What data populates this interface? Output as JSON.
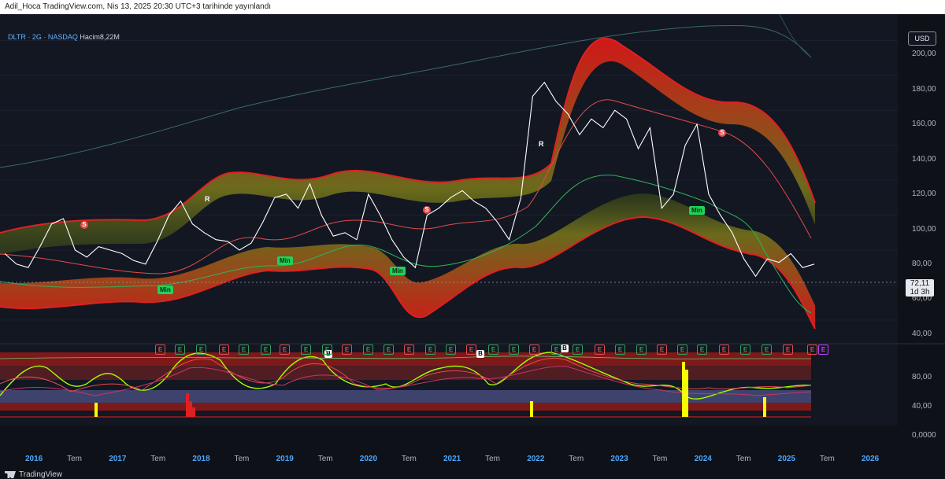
{
  "header": {
    "text": "Adil_Hoca TradingView.com, Nis 13, 2025 20:30 UTC+3 tarihinde yayınlandı"
  },
  "legend": {
    "symbol": "DLTR · 2G · NASDAQ",
    "volume_label": "Hacim",
    "volume_value": "8,22M"
  },
  "currency": "USD",
  "last_price": {
    "value": "72,11",
    "countdown": "1d 3h"
  },
  "footer": {
    "brand": "TradingView"
  },
  "colors": {
    "background": "#0e1117",
    "band": "#c0201a",
    "band_inner": "#7a6a1a",
    "price": "#ffffff",
    "ma_green": "#2fb35a",
    "ma_red": "#e34b4b",
    "accent": "#4aa8ff"
  },
  "chart_data": [
    {
      "type": "line",
      "title": "DLTR · 2G · NASDAQ",
      "ylim": [
        35,
        215
      ],
      "y_ticks": [
        "40,00",
        "60,00",
        "80,00",
        "100,00",
        "120,00",
        "140,00",
        "160,00",
        "180,00",
        "200,00"
      ],
      "x_ticks": [
        "2016",
        "Tem",
        "2017",
        "Tem",
        "2018",
        "Tem",
        "2019",
        "Tem",
        "2020",
        "Tem",
        "2021",
        "Tem",
        "2022",
        "Tem",
        "2023",
        "Tem",
        "2024",
        "Tem",
        "2025",
        "Tem",
        "2026"
      ],
      "series": [
        {
          "values": [
            78,
            72,
            70,
            82,
            95,
            98,
            80,
            76,
            82,
            80,
            78,
            74,
            72,
            85,
            100,
            108,
            95,
            90,
            86,
            85,
            80,
            84,
            96,
            110,
            112,
            104,
            118,
            100,
            88,
            90,
            86,
            112,
            100,
            86,
            76,
            70,
            100,
            104,
            110,
            114,
            108,
            104,
            96,
            86,
            110,
            168,
            176,
            165,
            158,
            146,
            155,
            150,
            160,
            155,
            138,
            150,
            104,
            112,
            140,
            152,
            112,
            100,
            90,
            75,
            65,
            75,
            73,
            78,
            70,
            72
          ]
        }
      ],
      "markers": {
        "min": [
          "Min",
          "Min",
          "Min",
          "Min"
        ],
        "s": [
          "S",
          "S",
          "S"
        ],
        "r": [
          "R",
          "R"
        ],
        "earnings": "E"
      }
    },
    {
      "type": "line",
      "title": "",
      "ylim": [
        -10,
        95
      ],
      "y_ticks": [
        "80,00",
        "40,00",
        "0,0000"
      ],
      "markers": {
        "b": [
          "B",
          "B",
          "B"
        ]
      }
    }
  ]
}
